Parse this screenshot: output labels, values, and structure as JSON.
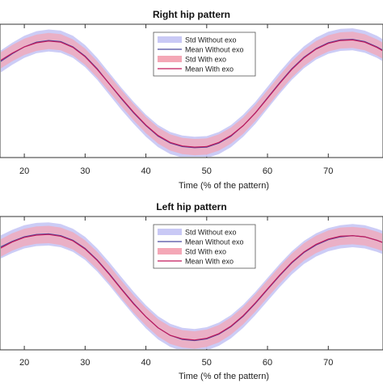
{
  "chart_data": [
    {
      "type": "line",
      "title": "Right hip pattern",
      "xlabel": "Time (% of the pattern)",
      "ylabel": "",
      "xlim": [
        16,
        79
      ],
      "ylim": [
        -1.15,
        1.15
      ],
      "xticks": [
        20,
        30,
        40,
        50,
        60,
        70
      ],
      "legend_position": "top-right",
      "legend": [
        "Std Without exo",
        "Mean Without exo",
        "Std With exo",
        "Mean With exo"
      ],
      "x": [
        16,
        18,
        20,
        22,
        24,
        26,
        28,
        30,
        32,
        34,
        36,
        38,
        40,
        42,
        44,
        46,
        48,
        50,
        52,
        54,
        56,
        58,
        60,
        62,
        64,
        66,
        68,
        70,
        72,
        74,
        76,
        78,
        79
      ],
      "series": [
        {
          "name": "Mean Without exo",
          "kind": "mean",
          "color": "#4a4aa0",
          "values": [
            0.5,
            0.64,
            0.76,
            0.84,
            0.87,
            0.85,
            0.76,
            0.6,
            0.38,
            0.12,
            -0.14,
            -0.38,
            -0.6,
            -0.78,
            -0.9,
            -0.96,
            -0.98,
            -0.97,
            -0.9,
            -0.78,
            -0.6,
            -0.38,
            -0.12,
            0.14,
            0.38,
            0.58,
            0.73,
            0.83,
            0.88,
            0.89,
            0.85,
            0.76,
            0.7
          ]
        },
        {
          "name": "Std Without exo",
          "kind": "band",
          "color": "#c9c9f5",
          "spread": 0.19
        },
        {
          "name": "Mean With exo",
          "kind": "mean",
          "color": "#c2185b",
          "values": [
            0.52,
            0.65,
            0.76,
            0.83,
            0.86,
            0.84,
            0.75,
            0.59,
            0.37,
            0.12,
            -0.13,
            -0.37,
            -0.59,
            -0.77,
            -0.89,
            -0.95,
            -0.97,
            -0.96,
            -0.89,
            -0.77,
            -0.6,
            -0.38,
            -0.13,
            0.13,
            0.37,
            0.57,
            0.72,
            0.82,
            0.87,
            0.88,
            0.84,
            0.75,
            0.69
          ]
        },
        {
          "name": "Std With exo",
          "kind": "band",
          "color": "#f4a7b6",
          "spread": 0.14
        }
      ]
    },
    {
      "type": "line",
      "title": "Left hip pattern",
      "xlabel": "Time (% of the pattern)",
      "ylabel": "",
      "xlim": [
        16,
        79
      ],
      "ylim": [
        -1.15,
        1.15
      ],
      "xticks": [
        20,
        30,
        40,
        50,
        60,
        70
      ],
      "legend_position": "top-right",
      "legend": [
        "Std Without exo",
        "Mean Without exo",
        "Std With exo",
        "Mean With exo"
      ],
      "x": [
        16,
        18,
        20,
        22,
        24,
        26,
        28,
        30,
        32,
        34,
        36,
        38,
        40,
        42,
        44,
        46,
        48,
        50,
        52,
        54,
        56,
        58,
        60,
        62,
        64,
        66,
        68,
        70,
        72,
        74,
        76,
        78,
        79
      ],
      "series": [
        {
          "name": "Mean Without exo",
          "kind": "mean",
          "color": "#4a4aa0",
          "values": [
            0.62,
            0.72,
            0.8,
            0.84,
            0.85,
            0.82,
            0.74,
            0.6,
            0.4,
            0.16,
            -0.1,
            -0.35,
            -0.58,
            -0.77,
            -0.9,
            -0.97,
            -0.99,
            -0.96,
            -0.88,
            -0.75,
            -0.57,
            -0.35,
            -0.11,
            0.13,
            0.35,
            0.53,
            0.66,
            0.75,
            0.8,
            0.82,
            0.8,
            0.74,
            0.7
          ]
        },
        {
          "name": "Std Without exo",
          "kind": "band",
          "color": "#c9c9f5",
          "spread": 0.2
        },
        {
          "name": "Mean With exo",
          "kind": "mean",
          "color": "#c2185b",
          "values": [
            0.6,
            0.71,
            0.79,
            0.83,
            0.84,
            0.81,
            0.73,
            0.59,
            0.39,
            0.15,
            -0.11,
            -0.36,
            -0.58,
            -0.77,
            -0.9,
            -0.96,
            -0.98,
            -0.95,
            -0.87,
            -0.74,
            -0.56,
            -0.34,
            -0.1,
            0.14,
            0.36,
            0.54,
            0.67,
            0.76,
            0.81,
            0.82,
            0.8,
            0.74,
            0.7
          ]
        },
        {
          "name": "Std With exo",
          "kind": "band",
          "color": "#f4a7b6",
          "spread": 0.15
        }
      ]
    }
  ]
}
